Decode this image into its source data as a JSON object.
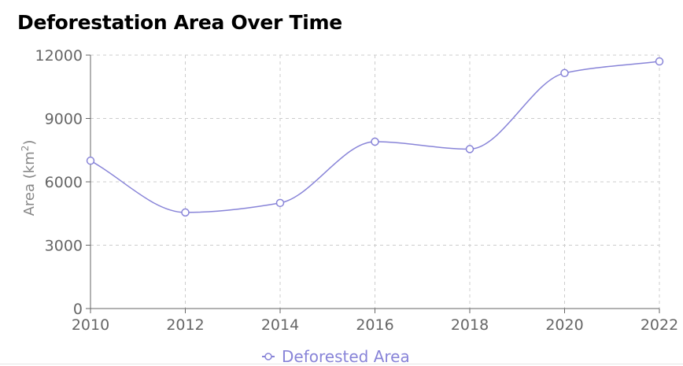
{
  "title": "Deforestation Area Over Time",
  "colors": {
    "series": "#8884d8",
    "axis": "#666666",
    "grid": "#cccccc",
    "axis_title": "#888888"
  },
  "chart_data": {
    "type": "line",
    "title": "Deforestation Area Over Time",
    "xlabel": "",
    "ylabel": "Area (km²)",
    "ylabel_base": "Area (km",
    "ylabel_sup": "2",
    "ylabel_end": ")",
    "x": [
      2010,
      2012,
      2014,
      2016,
      2018,
      2020,
      2022
    ],
    "xticks": [
      "2010",
      "2012",
      "2014",
      "2016",
      "2018",
      "2020",
      "2022"
    ],
    "yticks": [
      "0",
      "3000",
      "6000",
      "9000",
      "12000"
    ],
    "ylim": [
      0,
      12000
    ],
    "grid": true,
    "grid_style": "dashed",
    "curve": "smooth",
    "legend": "bottom-center",
    "series": [
      {
        "name": "Deforested Area",
        "color": "#8884d8",
        "marker": "hollow-circle",
        "values": [
          7000,
          4550,
          5000,
          7900,
          7550,
          11150,
          11700
        ]
      }
    ]
  }
}
